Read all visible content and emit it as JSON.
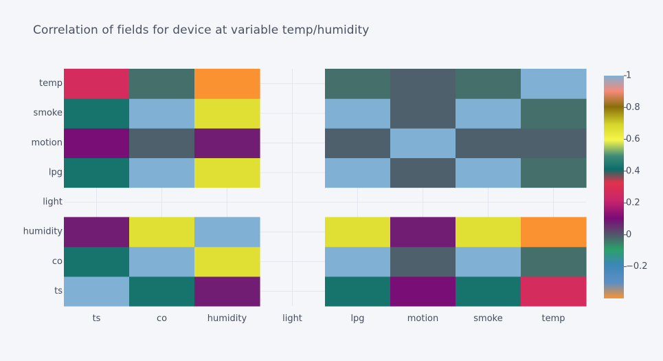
{
  "chart_data": {
    "type": "heatmap",
    "title": "Correlation of fields for device at variable temp/humidity",
    "x_categories": [
      "ts",
      "co",
      "humidity",
      "light",
      "lpg",
      "motion",
      "smoke",
      "temp"
    ],
    "y_categories": [
      "ts",
      "co",
      "humidity",
      "light",
      "lpg",
      "motion",
      "smoke",
      "temp"
    ],
    "z": [
      [
        1.0,
        0.43,
        0.08,
        null,
        0.43,
        0.1,
        0.43,
        0.27
      ],
      [
        0.43,
        1.0,
        0.66,
        null,
        1.0,
        -0.01,
        1.0,
        -0.03
      ],
      [
        0.08,
        0.66,
        1.0,
        null,
        0.66,
        0.08,
        0.66,
        -0.4
      ],
      [
        null,
        null,
        null,
        null,
        null,
        null,
        null,
        null
      ],
      [
        0.43,
        1.0,
        0.66,
        null,
        1.0,
        -0.01,
        1.0,
        -0.03
      ],
      [
        0.1,
        -0.01,
        0.08,
        null,
        -0.01,
        1.0,
        -0.01,
        -0.01
      ],
      [
        0.43,
        1.0,
        0.66,
        null,
        1.0,
        -0.01,
        1.0,
        -0.03
      ],
      [
        0.27,
        -0.03,
        -0.4,
        null,
        -0.03,
        -0.01,
        -0.03,
        1.0
      ]
    ],
    "zmin": -0.4,
    "zmax": 1.0,
    "colorbar": {
      "tick_values": [
        1,
        0.8,
        0.6,
        0.4,
        0.2,
        0,
        -0.2
      ],
      "tick_labels": [
        "1",
        "0.8",
        "0.6",
        "0.4",
        "0.2",
        "0",
        "−0.2"
      ]
    },
    "colorscale": [
      [
        0.0,
        "#fa9232"
      ],
      [
        0.07,
        "#5d8fc4"
      ],
      [
        0.15,
        "#3d87b8"
      ],
      [
        0.22,
        "#2aa06a"
      ],
      [
        0.29,
        "#55536b"
      ],
      [
        0.36,
        "#7a0b76"
      ],
      [
        0.44,
        "#c9256c"
      ],
      [
        0.52,
        "#e0334a"
      ],
      [
        0.58,
        "#0b6e6a"
      ],
      [
        0.64,
        "#3f8c7a"
      ],
      [
        0.71,
        "#f5f54a"
      ],
      [
        0.78,
        "#d6d62a"
      ],
      [
        0.86,
        "#8a6e0a"
      ],
      [
        0.93,
        "#f58a78"
      ],
      [
        1.0,
        "#80b0d4"
      ]
    ],
    "grid": true,
    "legend": "right"
  }
}
